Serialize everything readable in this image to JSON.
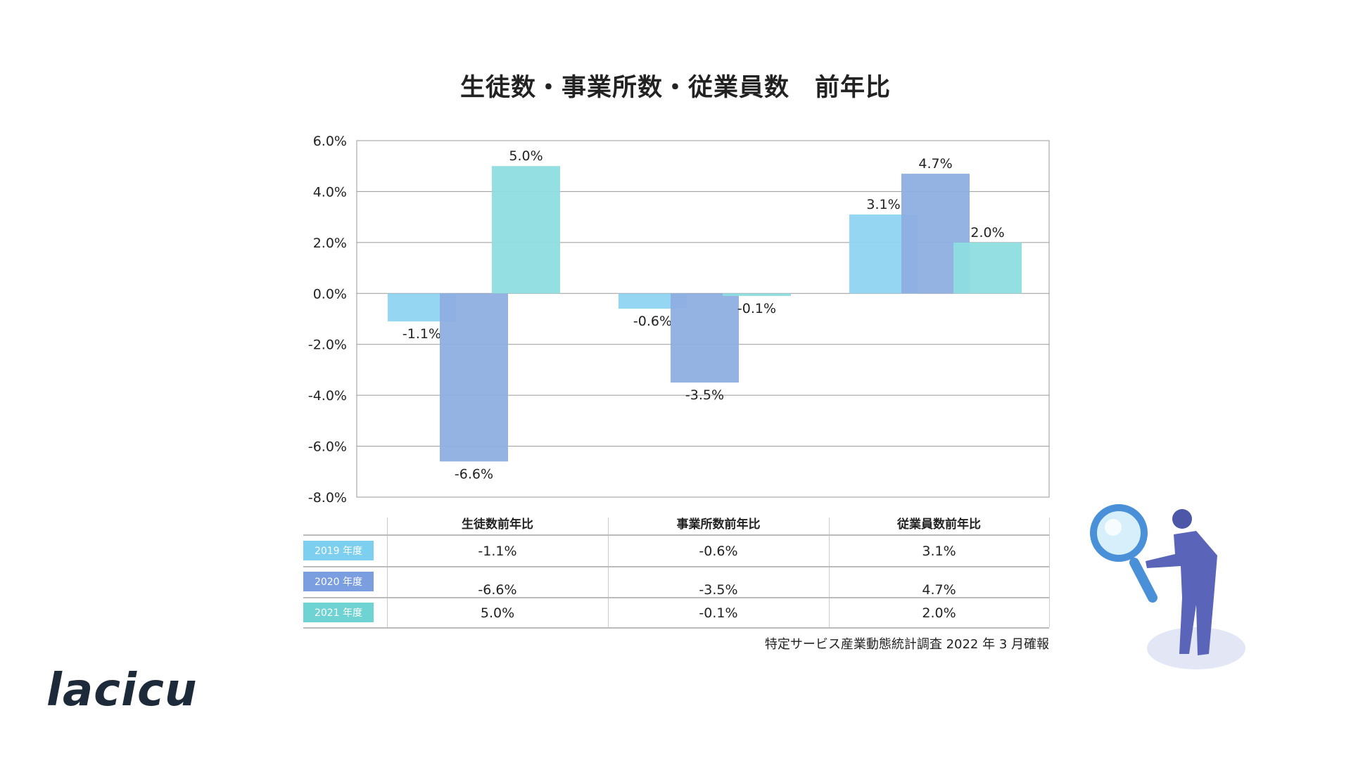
{
  "chart_data": {
    "type": "bar",
    "title": "生徒数・事業所数・従業員数　前年比",
    "categories": [
      "生徒数前年比",
      "事業所数前年比",
      "従業員数前年比"
    ],
    "series": [
      {
        "name": "2019 年度",
        "color": "#8fd5f2",
        "values": [
          -1.1,
          -0.6,
          3.1
        ]
      },
      {
        "name": "2020 年度",
        "color": "#8eaee0",
        "values": [
          -6.6,
          -3.5,
          4.7
        ]
      },
      {
        "name": "2021 年度",
        "color": "#8ddde0",
        "values": [
          5.0,
          -0.1,
          2.0
        ]
      }
    ],
    "ylim": [
      -8,
      6
    ],
    "yticks": [
      "6.0%",
      "4.0%",
      "2.0%",
      "0.0%",
      "-2.0%",
      "-4.0%",
      "-6.0%",
      "-8.0%"
    ],
    "grid": true
  },
  "table": {
    "headers": [
      "生徒数前年比",
      "事業所数前年比",
      "従業員数前年比"
    ],
    "rows": [
      {
        "label": "2019 年度",
        "color": "#7ccfee",
        "values": [
          "-1.1%",
          "-0.6%",
          "3.1%"
        ]
      },
      {
        "label": "2020 年度",
        "color": "#7b9ee0",
        "values": [
          "-6.6%",
          "-3.5%",
          "4.7%"
        ]
      },
      {
        "label": "2021 年度",
        "color": "#6fd3d3",
        "values": [
          "5.0%",
          "-0.1%",
          "2.0%"
        ]
      }
    ]
  },
  "source": "特定サービス産業動態統計調査 2022 年 3 月確報",
  "logo": "lacicu"
}
